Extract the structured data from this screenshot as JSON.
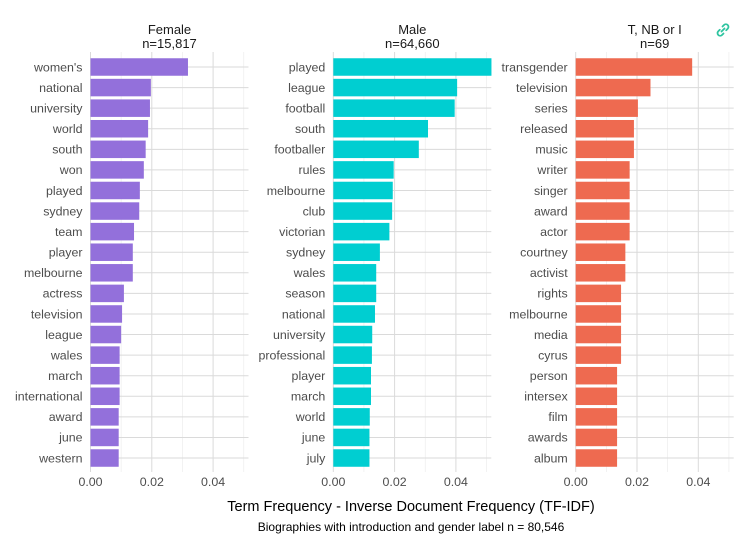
{
  "chart_data": {
    "type": "bar",
    "orientation": "horizontal",
    "xlabel": "Term Frequency - Inverse Document Frequency (TF-IDF)",
    "caption": "Biographies with introduction and gender label n = 80,546",
    "xlim": [
      0,
      0.052
    ],
    "xticks": [
      0.0,
      0.02,
      0.04
    ],
    "xtick_labels": [
      "0.00",
      "0.02",
      "0.04"
    ],
    "grid": true,
    "legend": "none",
    "panels": [
      {
        "title": "Female",
        "subtitle": "n=15,817",
        "color": "#9370DB",
        "categories": [
          "women's",
          "national",
          "university",
          "world",
          "south",
          "won",
          "played",
          "sydney",
          "team",
          "player",
          "melbourne",
          "actress",
          "television",
          "league",
          "wales",
          "march",
          "international",
          "award",
          "june",
          "western"
        ],
        "values": [
          0.0318,
          0.0197,
          0.0194,
          0.0188,
          0.018,
          0.0174,
          0.0161,
          0.0159,
          0.0142,
          0.0138,
          0.0138,
          0.0109,
          0.0103,
          0.01,
          0.0095,
          0.0095,
          0.0095,
          0.0092,
          0.0092,
          0.0092
        ]
      },
      {
        "title": "Male",
        "subtitle": "n=64,660",
        "color": "#00CED1",
        "categories": [
          "played",
          "league",
          "football",
          "south",
          "footballer",
          "rules",
          "melbourne",
          "club",
          "victorian",
          "sydney",
          "wales",
          "season",
          "national",
          "university",
          "professional",
          "player",
          "march",
          "world",
          "june",
          "july"
        ],
        "values": [
          0.0516,
          0.0404,
          0.0396,
          0.0309,
          0.0279,
          0.0197,
          0.0194,
          0.0192,
          0.0183,
          0.0152,
          0.014,
          0.014,
          0.0136,
          0.0127,
          0.0126,
          0.0123,
          0.0123,
          0.0119,
          0.0118,
          0.0118
        ]
      },
      {
        "title": "T, NB or I",
        "subtitle": "n=69",
        "color": "#EE6A50",
        "categories": [
          "transgender",
          "television",
          "series",
          "released",
          "music",
          "writer",
          "singer",
          "award",
          "actor",
          "courtney",
          "activist",
          "rights",
          "melbourne",
          "media",
          "cyrus",
          "person",
          "intersex",
          "film",
          "awards",
          "album"
        ],
        "values": [
          0.038,
          0.0244,
          0.0203,
          0.019,
          0.019,
          0.0176,
          0.0176,
          0.0176,
          0.0176,
          0.0162,
          0.0162,
          0.0148,
          0.0148,
          0.0148,
          0.0148,
          0.0135,
          0.0135,
          0.0135,
          0.0135,
          0.0135
        ]
      }
    ]
  },
  "ui": {
    "link_icon": "link-icon",
    "link_color": "#2EC4A0"
  }
}
